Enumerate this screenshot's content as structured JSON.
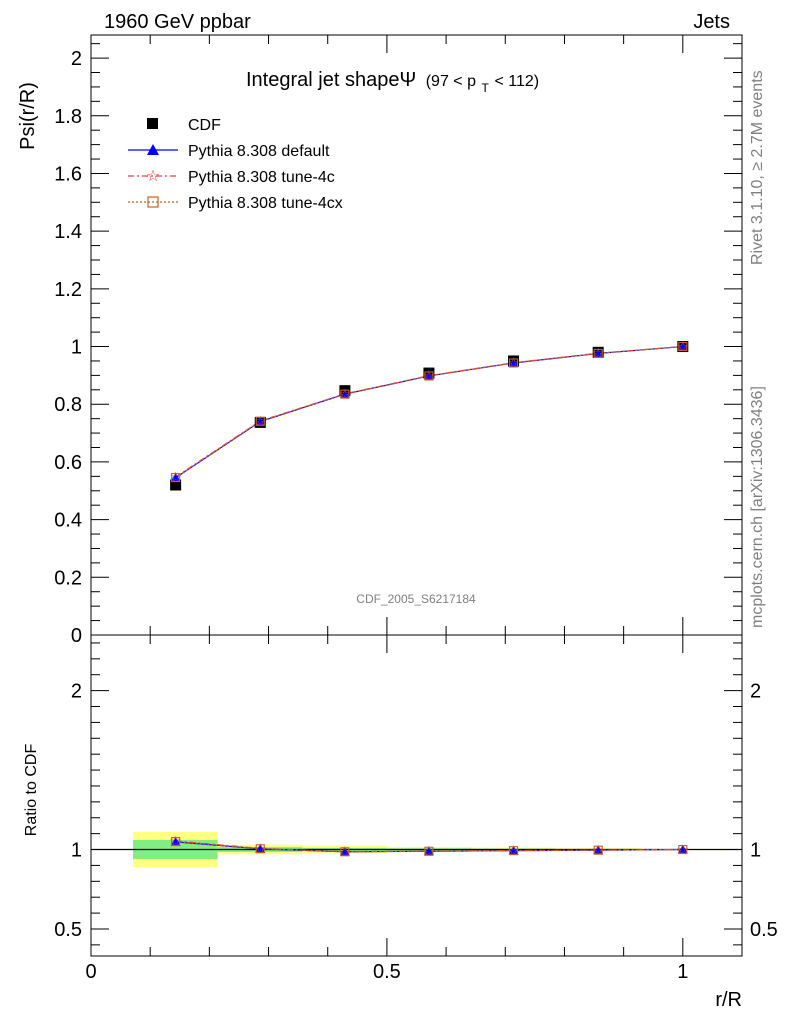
{
  "header": {
    "left": "1960 GeV ppbar",
    "right": "Jets"
  },
  "side_labels": {
    "rivet": "Rivet 3.1.10, ≥ 2.7M events",
    "mcplots": "mcplots.cern.ch [arXiv:1306.3436]"
  },
  "chart_data": [
    {
      "type": "line",
      "title": "Integral jet shapeΨ",
      "title_suffix": "(97 < p",
      "title_sub": "T",
      "title_tail": " < 112)",
      "ylabel": "Psi(r/R)",
      "xlabel": "r/R",
      "watermark": "CDF_2005_S6217184",
      "xlim": [
        0,
        1.1
      ],
      "ylim": [
        0,
        2.08
      ],
      "y_ticks": [
        "0",
        "0.2",
        "0.4",
        "0.6",
        "0.8",
        "1",
        "1.2",
        "1.4",
        "1.6",
        "1.8",
        "2"
      ],
      "x": [
        0.143,
        0.286,
        0.429,
        0.571,
        0.714,
        0.857,
        1.0
      ],
      "series": [
        {
          "name": "CDF",
          "color": "#000000",
          "marker": "square",
          "values": [
            0.52,
            0.737,
            0.847,
            0.908,
            0.95,
            0.98,
            1.0
          ]
        },
        {
          "name": "Pythia 8.308 default",
          "color": "#0000ff",
          "marker": "triangle",
          "values": [
            0.545,
            0.74,
            0.835,
            0.898,
            0.943,
            0.976,
            1.0
          ]
        },
        {
          "name": "Pythia 8.308 tune-4c",
          "color": "#e8403a",
          "marker": "star",
          "values": [
            0.548,
            0.742,
            0.836,
            0.899,
            0.944,
            0.977,
            1.0
          ]
        },
        {
          "name": "Pythia 8.308 tune-4cx",
          "color": "#c8621e",
          "marker": "open-square",
          "values": [
            0.546,
            0.741,
            0.835,
            0.898,
            0.943,
            0.976,
            1.0
          ]
        }
      ]
    },
    {
      "type": "line",
      "ylabel": "Ratio to CDF",
      "xlabel": "r/R",
      "xlim": [
        0,
        1.1
      ],
      "ylim": [
        0.33,
        2.35
      ],
      "x_ticks": [
        "0",
        "0.5",
        "1"
      ],
      "y_ticks": [
        "0.5",
        "1",
        "2"
      ],
      "x": [
        0.143,
        0.286,
        0.429,
        0.571,
        0.714,
        0.857,
        1.0
      ],
      "bin_edges": [
        0.071,
        0.214,
        0.357,
        0.5,
        0.643,
        0.786,
        0.929,
        1.071
      ],
      "band_inner": [
        0.06,
        0.015,
        0.01,
        0.008,
        0.006,
        0.004,
        0.002
      ],
      "band_outer": [
        0.11,
        0.03,
        0.025,
        0.016,
        0.012,
        0.008,
        0.004
      ],
      "series": [
        {
          "name": "Pythia 8.308 default",
          "values": [
            1.048,
            1.004,
            0.986,
            0.989,
            0.993,
            0.996,
            1.0
          ]
        },
        {
          "name": "Pythia 8.308 tune-4c",
          "values": [
            1.054,
            1.007,
            0.987,
            0.99,
            0.994,
            0.997,
            1.0
          ]
        },
        {
          "name": "Pythia 8.308 tune-4cx",
          "values": [
            1.05,
            1.005,
            0.986,
            0.989,
            0.993,
            0.996,
            1.0
          ]
        }
      ]
    }
  ]
}
